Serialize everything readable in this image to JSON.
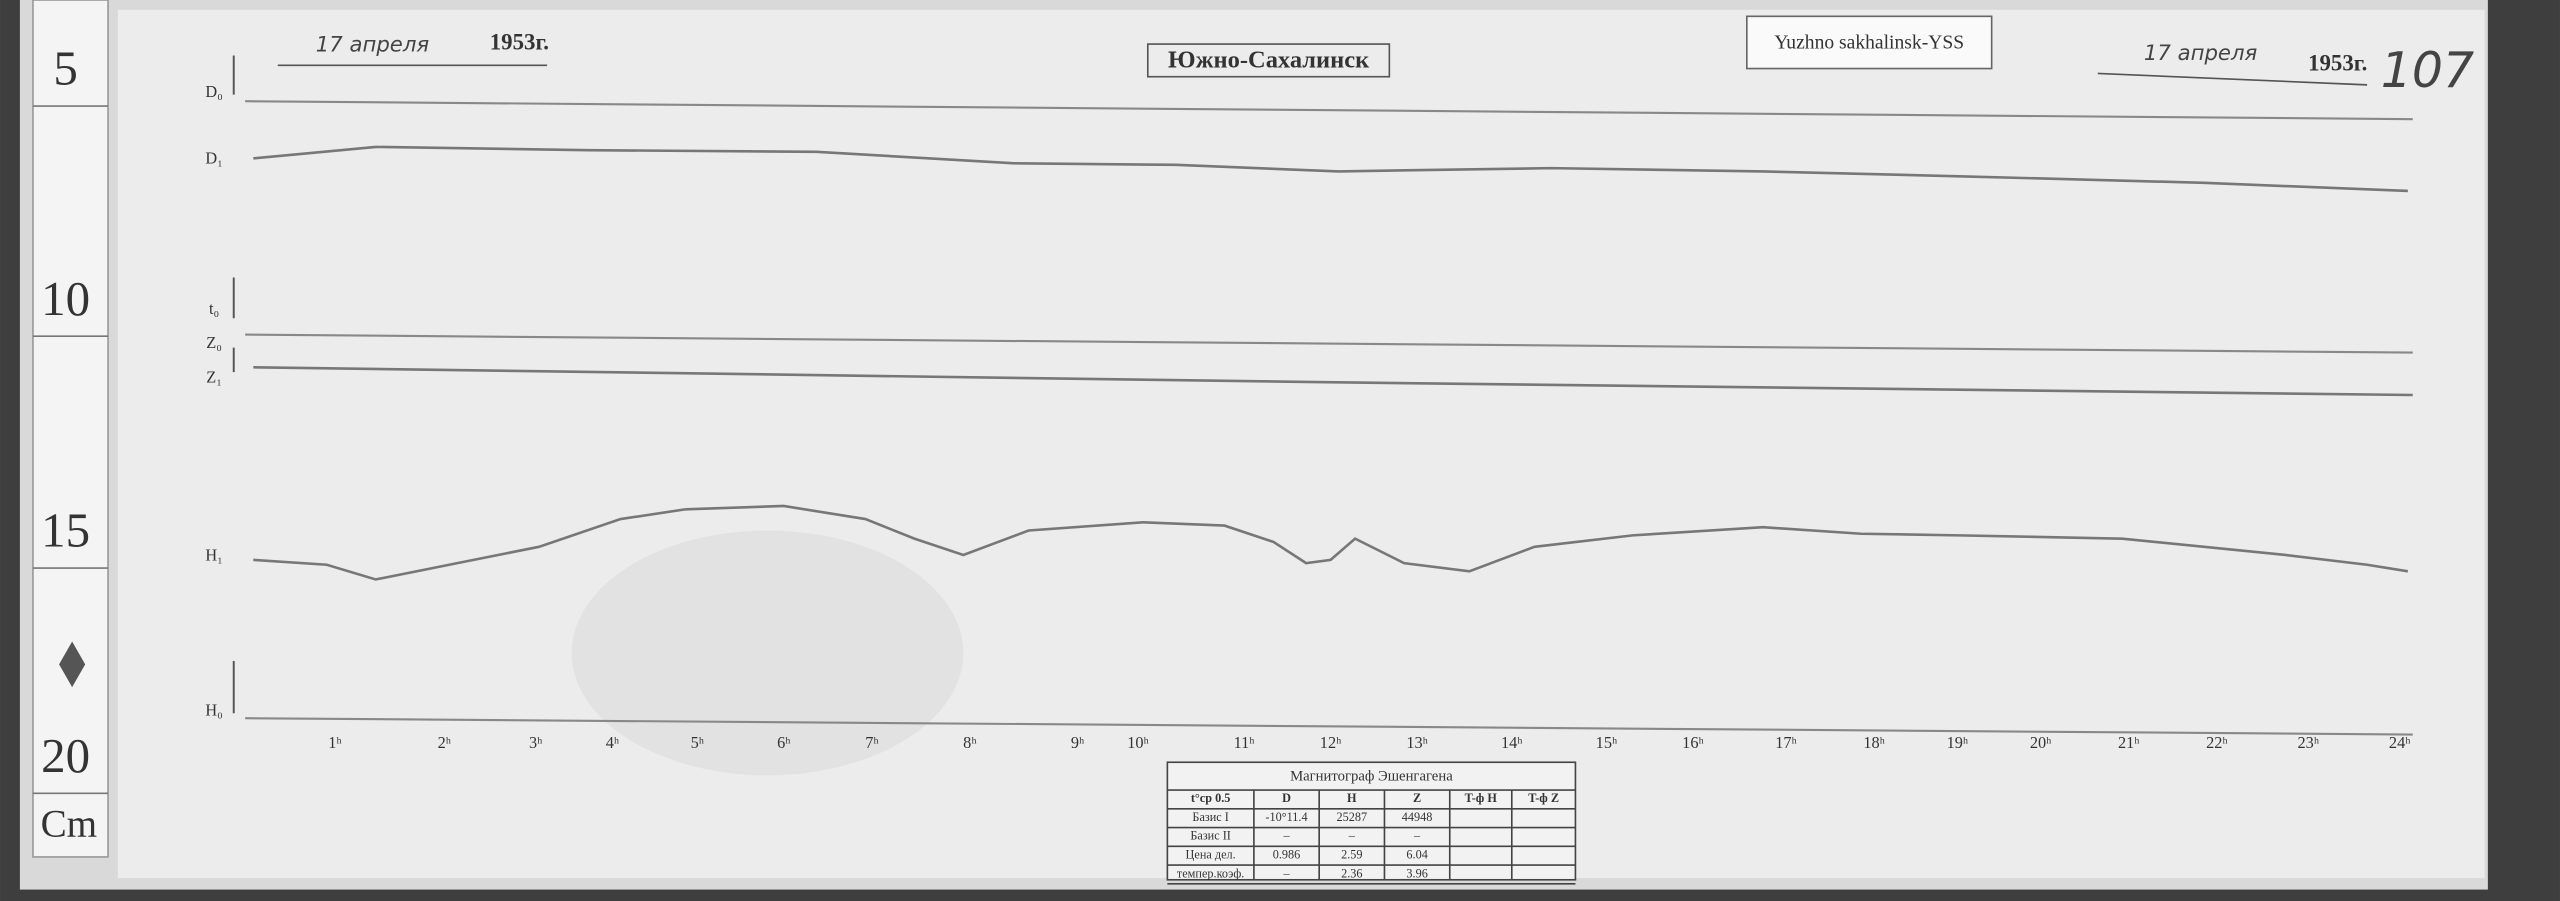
{
  "header": {
    "date_left": "17 апреля",
    "year_left": "1953г.",
    "station": "Южно-Сахалинск",
    "tag": "Yuzhno sakhalinsk-YSS",
    "date_right": "17 апреля",
    "year_right": "1953г.",
    "sheet_number": "107"
  },
  "ruler": {
    "marks": [
      "5",
      "10",
      "15",
      "20"
    ],
    "unit": "Cm"
  },
  "trace_labels": [
    "D₀",
    "D₁",
    "t₀",
    "Z₀",
    "Z₁",
    "H₁",
    "H₀"
  ],
  "hours": [
    "1ʰ",
    "2ʰ",
    "3ʰ",
    "4ʰ",
    "5ʰ",
    "6ʰ",
    "7ʰ",
    "8ʰ",
    "9ʰ",
    "10ʰ",
    "11ʰ",
    "12ʰ",
    "13ʰ",
    "14ʰ",
    "15ʰ",
    "16ʰ",
    "17ʰ",
    "18ʰ",
    "19ʰ",
    "20ʰ",
    "21ʰ",
    "22ʰ",
    "23ʰ",
    "24ʰ"
  ],
  "table": {
    "title": "Магнитограф Эшенгагена",
    "header": [
      "t°ср 0.5",
      "D",
      "H",
      "Z",
      "T-ф H",
      "T-ф Z"
    ],
    "rows": [
      [
        "Базис I",
        "-10°11.4",
        "25287",
        "44948",
        "",
        ""
      ],
      [
        "Базис II",
        "–",
        "–",
        "–",
        "",
        ""
      ],
      [
        "Цена дел.",
        "0.986",
        "2.59",
        "6.04",
        "",
        ""
      ],
      [
        "темпер.коэф.",
        "–",
        "2.36",
        "3.96",
        "",
        ""
      ]
    ]
  }
}
